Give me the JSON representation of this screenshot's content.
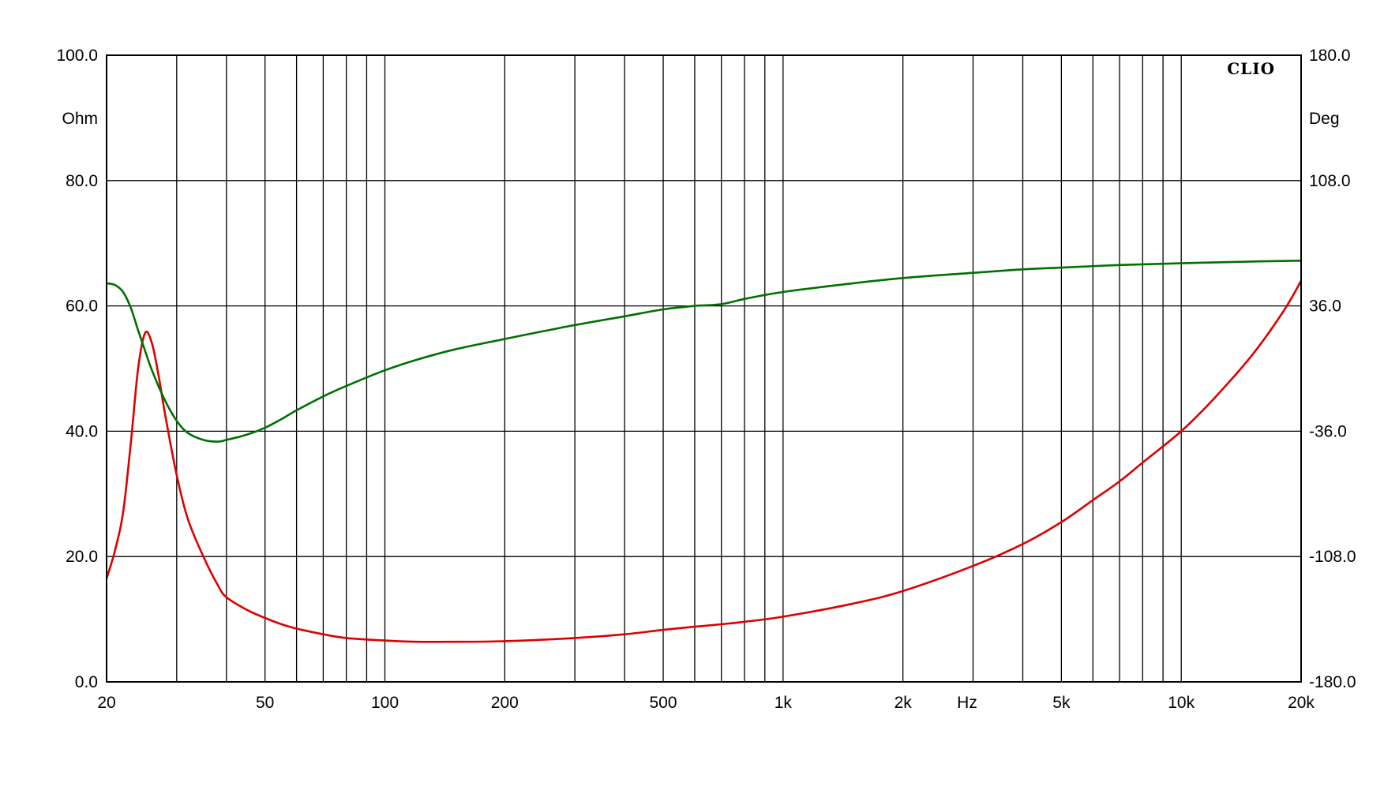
{
  "chart_data": {
    "type": "line",
    "brand": "CLIO",
    "x_scale": "log",
    "xlim": [
      20,
      20000
    ],
    "ylim": [
      0,
      100
    ],
    "y2lim": [
      -180,
      180
    ],
    "ylabel": "Ohm",
    "y2label": "Deg",
    "xunit_label": "Hz",
    "x_ticks": [
      {
        "value": 20,
        "label": "20"
      },
      {
        "value": 50,
        "label": "50"
      },
      {
        "value": 100,
        "label": "100"
      },
      {
        "value": 200,
        "label": "200"
      },
      {
        "value": 500,
        "label": "500"
      },
      {
        "value": 1000,
        "label": "1k"
      },
      {
        "value": 2000,
        "label": "2k"
      },
      {
        "value": 5000,
        "label": "5k"
      },
      {
        "value": 10000,
        "label": "10k"
      },
      {
        "value": 20000,
        "label": "20k"
      }
    ],
    "y_ticks": [
      "0.0",
      "20.0",
      "40.0",
      "60.0",
      "80.0",
      "100.0"
    ],
    "y2_ticks": [
      "-180.0",
      "-108.0",
      "-36.0",
      "36.0",
      "108.0",
      "180.0"
    ],
    "grid": true,
    "colors": {
      "impedance": "#dd0000",
      "phase": "#007000",
      "grid": "#000000"
    },
    "series": [
      {
        "axis": "left",
        "color": "#dd0000",
        "x": [
          20,
          21,
          22,
          23,
          24,
          25,
          26,
          27,
          28,
          30,
          32,
          35,
          38,
          40,
          45,
          50,
          55,
          60,
          70,
          80,
          100,
          120,
          150,
          200,
          300,
          400,
          500,
          600,
          700,
          800,
          1000,
          1500,
          2000,
          3000,
          4000,
          5000,
          6000,
          7000,
          8000,
          10000,
          12000,
          15000,
          18000,
          20000
        ],
        "values": [
          16.5,
          21,
          27,
          38,
          50,
          55.7,
          54,
          49,
          43,
          33,
          26,
          20,
          15.5,
          13.5,
          11.5,
          10.2,
          9.2,
          8.5,
          7.6,
          7.0,
          6.6,
          6.4,
          6.4,
          6.5,
          7.0,
          7.6,
          8.3,
          8.8,
          9.2,
          9.6,
          10.4,
          12.5,
          14.5,
          18.5,
          22,
          25.5,
          29,
          32,
          35,
          40,
          45,
          52,
          59,
          64
        ]
      },
      {
        "axis": "right",
        "color": "#007000",
        "x": [
          20,
          21,
          22,
          23,
          24,
          25,
          26,
          28,
          30,
          32,
          35,
          38,
          40,
          45,
          50,
          55,
          60,
          70,
          80,
          100,
          120,
          150,
          200,
          300,
          400,
          500,
          600,
          700,
          800,
          1000,
          1500,
          2000,
          3000,
          4000,
          5000,
          7000,
          10000,
          15000,
          20000
        ],
        "values": [
          49,
          48,
          44,
          35,
          22,
          10,
          -1,
          -18,
          -30,
          -37,
          -41,
          -42,
          -41,
          -38,
          -34,
          -29,
          -24,
          -16,
          -10,
          -1,
          5,
          11,
          17,
          25,
          30,
          34,
          36,
          37,
          40,
          44,
          49,
          52,
          55,
          57,
          58,
          59.5,
          60.5,
          61.5,
          62
        ]
      }
    ]
  }
}
